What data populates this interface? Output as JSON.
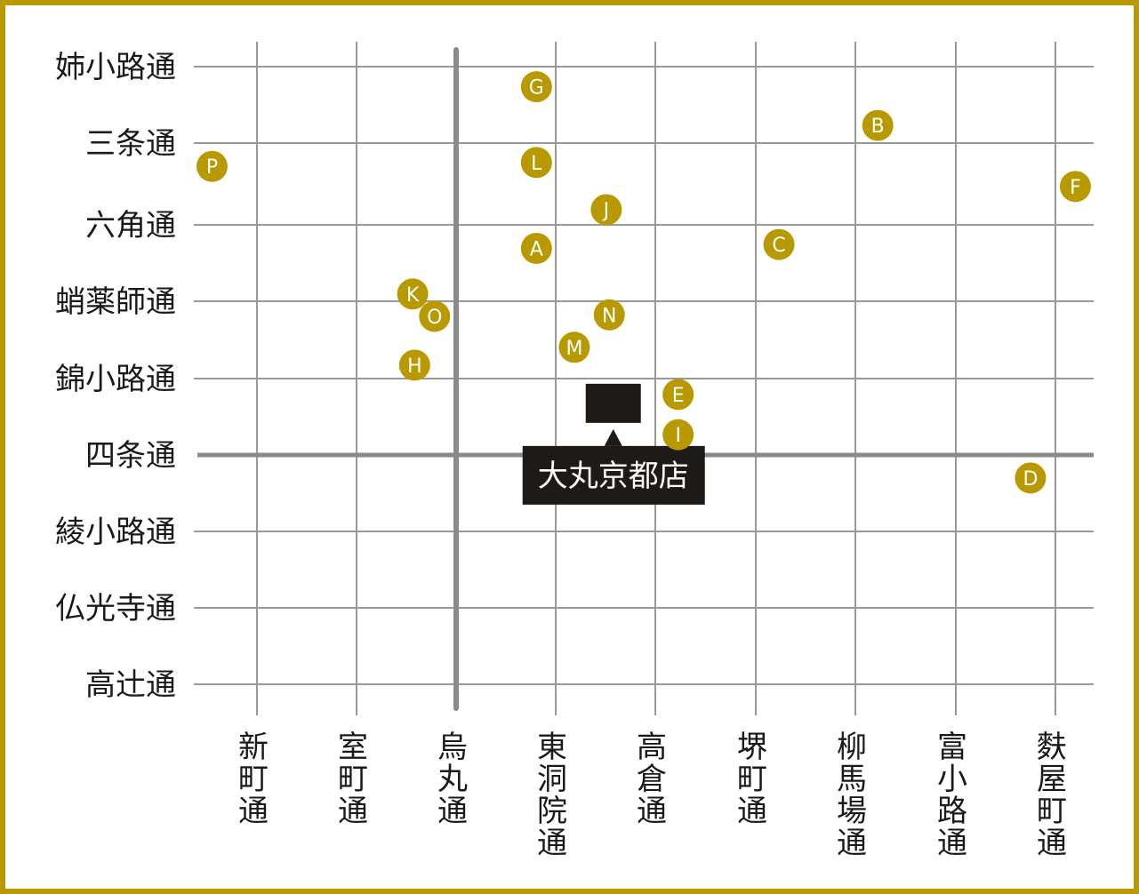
{
  "colors": {
    "frame": "#b89a00",
    "grid": "#999999",
    "main_road": "#8a8a8a",
    "marker": "#b89a00",
    "marker_text": "#ffffff",
    "store": "#1e1a18",
    "label_text": "#1a1a1a"
  },
  "rows": [
    {
      "key": "aneyakoji",
      "label": "姉小路通"
    },
    {
      "key": "sanjo",
      "label": "三条通"
    },
    {
      "key": "rokkaku",
      "label": "六角通"
    },
    {
      "key": "takoyakushi",
      "label": "蛸薬師通"
    },
    {
      "key": "nishikikoji",
      "label": "錦小路通"
    },
    {
      "key": "shijo",
      "label": "四条通"
    },
    {
      "key": "ayanokoji",
      "label": "綾小路通"
    },
    {
      "key": "bukkoji",
      "label": "仏光寺通"
    },
    {
      "key": "takatsuji",
      "label": "高辻通"
    }
  ],
  "columns": [
    {
      "key": "shinmachi",
      "label": "新町通"
    },
    {
      "key": "muromachi",
      "label": "室町通"
    },
    {
      "key": "karasuma",
      "label": "烏丸通"
    },
    {
      "key": "higashinotoin",
      "label": "東洞院通"
    },
    {
      "key": "takakura",
      "label": "高倉通"
    },
    {
      "key": "sakaimachi",
      "label": "堺町通"
    },
    {
      "key": "yanaginobamba",
      "label": "柳馬場通"
    },
    {
      "key": "tominokoji",
      "label": "富小路通"
    },
    {
      "key": "fuyacho",
      "label": "麩屋町通"
    }
  ],
  "main_roads": {
    "row": "shijo",
    "column": "karasuma"
  },
  "markers": [
    {
      "id": "A",
      "col": 2.8,
      "row": 2.35
    },
    {
      "id": "B",
      "col": 6.22,
      "row": 0.76
    },
    {
      "id": "C",
      "col": 5.23,
      "row": 2.3
    },
    {
      "id": "D",
      "col": 7.75,
      "row": 5.32
    },
    {
      "id": "E",
      "col": 4.22,
      "row": 4.24
    },
    {
      "id": "F",
      "col": 8.2,
      "row": 1.55
    },
    {
      "id": "G",
      "col": 2.8,
      "row": 0.26
    },
    {
      "id": "H",
      "col": 1.58,
      "row": 3.86
    },
    {
      "id": "I",
      "col": 4.22,
      "row": 4.76
    },
    {
      "id": "J",
      "col": 3.5,
      "row": 1.85
    },
    {
      "id": "K",
      "col": 1.56,
      "row": 2.94
    },
    {
      "id": "L",
      "col": 2.8,
      "row": 1.24
    },
    {
      "id": "M",
      "col": 3.18,
      "row": 3.63
    },
    {
      "id": "N",
      "col": 3.53,
      "row": 3.21
    },
    {
      "id": "O",
      "col": 1.78,
      "row": 3.23
    },
    {
      "id": "P",
      "col": -0.45,
      "row": 1.29
    }
  ],
  "store": {
    "label": "大丸京都店",
    "col": 3.57,
    "row": 4.55
  }
}
